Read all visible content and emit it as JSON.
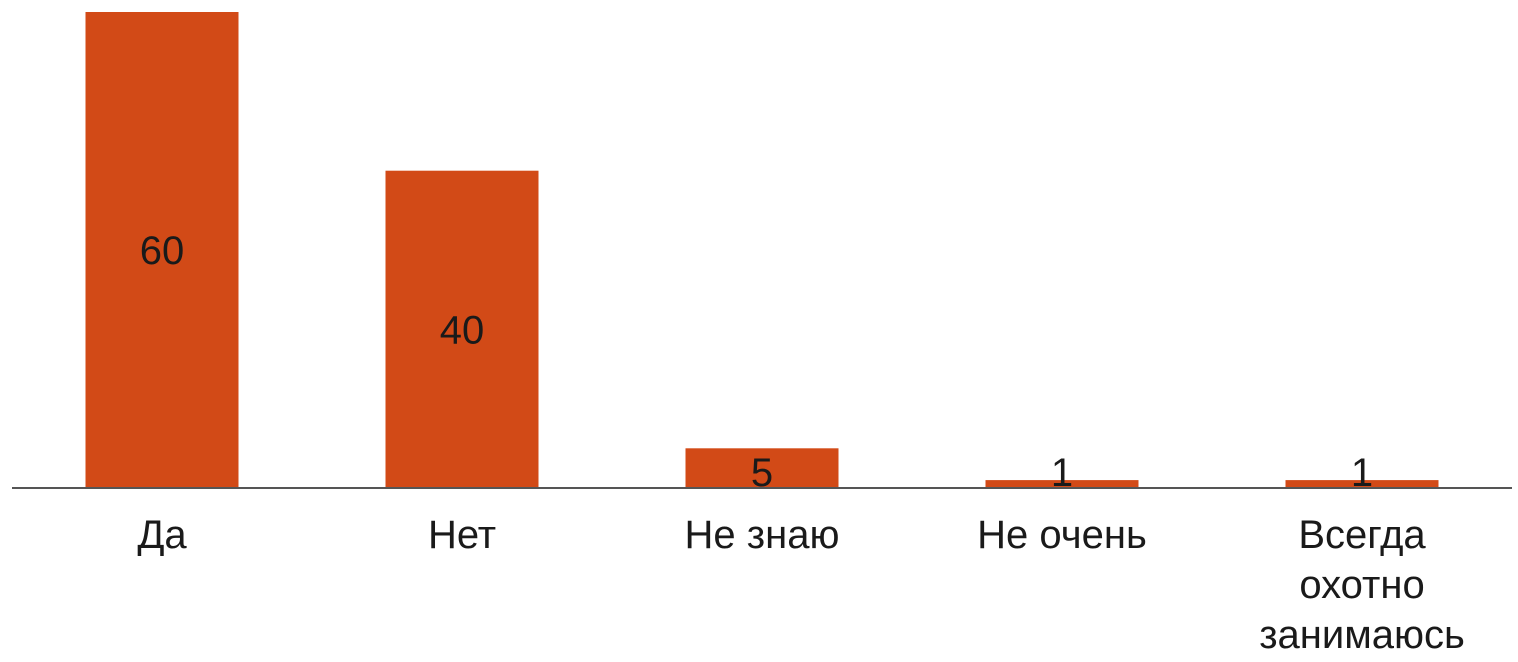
{
  "chart_data": {
    "type": "bar",
    "categories": [
      "Да",
      "Нет",
      "Не знаю",
      "Не очень",
      "Всегда охотно занимаюсь"
    ],
    "category_lines": [
      [
        "Да"
      ],
      [
        "Нет"
      ],
      [
        "Не знаю"
      ],
      [
        "Не очень"
      ],
      [
        "Всегда",
        "охотно",
        "занимаюсь"
      ]
    ],
    "values": [
      60,
      40,
      5,
      1,
      1
    ],
    "value_labels": [
      "60",
      "40",
      "5",
      "1",
      "1"
    ],
    "title": "",
    "xlabel": "",
    "ylabel": "",
    "ylim": [
      0,
      60
    ],
    "grid": false,
    "legend": "none",
    "bar_color": "#d24a17",
    "axis_color": "#555555",
    "text_color": "#1a1a1a"
  }
}
